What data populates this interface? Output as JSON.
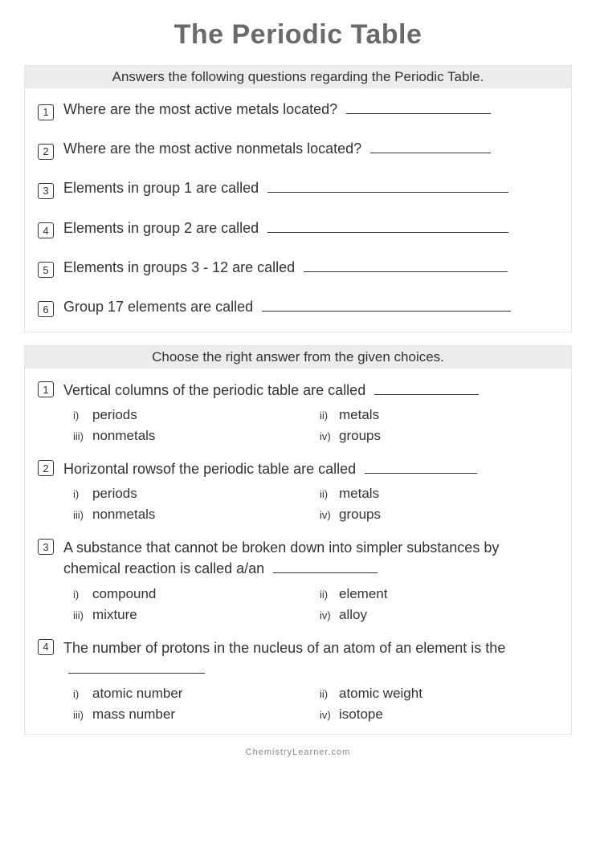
{
  "title": "The Periodic Table",
  "section1": {
    "header": "Answers the following questions regarding the Periodic Table.",
    "questions": [
      {
        "num": "1",
        "text": "Where are the most active metals located?",
        "blank_width": 180
      },
      {
        "num": "2",
        "text": "Where are the most active nonmetals located?",
        "blank_width": 150
      },
      {
        "num": "3",
        "text": "Elements in group 1 are called",
        "blank_width": 300
      },
      {
        "num": "4",
        "text": "Elements in group 2 are called",
        "blank_width": 300
      },
      {
        "num": "5",
        "text": "Elements in groups 3 - 12 are called",
        "blank_width": 254
      },
      {
        "num": "6",
        "text": "Group 17 elements are called",
        "blank_width": 310
      }
    ]
  },
  "section2": {
    "header": "Choose the right answer from the given choices.",
    "questions": [
      {
        "num": "1",
        "text": "Vertical columns of the periodic table are called",
        "blank_width": 130,
        "choices": [
          "periods",
          "metals",
          "nonmetals",
          "groups"
        ]
      },
      {
        "num": "2",
        "text": "Horizontal rowsof the periodic table are called",
        "blank_width": 140,
        "choices": [
          "periods",
          "metals",
          "nonmetals",
          "groups"
        ]
      },
      {
        "num": "3",
        "text": "A substance that cannot be broken down into simpler substances by chemical reaction is called a/an",
        "blank_width": 130,
        "choices": [
          "compound",
          "element",
          "mixture",
          "alloy"
        ]
      },
      {
        "num": "4",
        "text": "The number of protons in the nucleus of an atom of an element is the",
        "blank_width": 170,
        "choices": [
          "atomic number",
          "atomic weight",
          "mass number",
          "isotope"
        ]
      }
    ]
  },
  "choice_labels": [
    "i)",
    "ii)",
    "iii)",
    "iv)"
  ],
  "footer": "ChemistryLearner.com",
  "colors": {
    "title": "#6a6a6a",
    "text": "#333333",
    "header_bg": "#ececec",
    "border": "#e4e4e4",
    "footer": "#888888"
  }
}
